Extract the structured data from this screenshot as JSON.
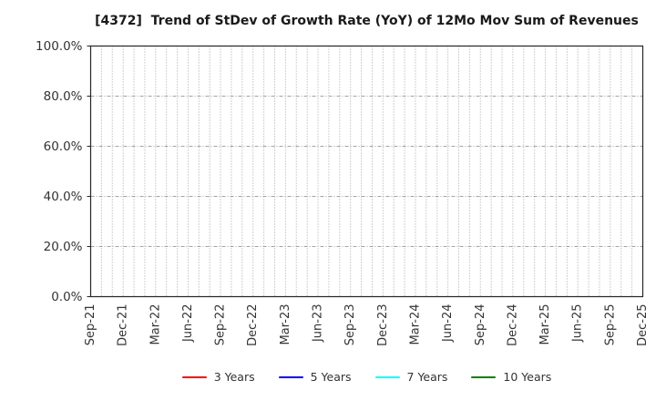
{
  "chart_data": {
    "type": "line",
    "title": "[4372]  Trend of StDev of Growth Rate (YoY) of 12Mo Mov Sum of Revenues",
    "x_tick_labels": [
      "Sep-21",
      "Dec-21",
      "Mar-22",
      "Jun-22",
      "Sep-22",
      "Dec-22",
      "Mar-23",
      "Jun-23",
      "Sep-23",
      "Dec-23",
      "Mar-24",
      "Jun-24",
      "Sep-24",
      "Dec-24",
      "Mar-25",
      "Jun-25",
      "Sep-25",
      "Dec-25"
    ],
    "months_per_x_tick": 3,
    "y_ticks": {
      "values": [
        0,
        20,
        40,
        60,
        80,
        100
      ],
      "labels": [
        "0.0%",
        "20.0%",
        "40.0%",
        "60.0%",
        "80.0%",
        "100.0%"
      ]
    },
    "ylim": [
      0,
      100
    ],
    "grid": {
      "vertical": "dotted line every month",
      "horizontal": "dash-dot line at each y tick",
      "color": "#a3a3a3"
    },
    "axis_color": "#262626",
    "tick_label_color": "#333333",
    "legend": {
      "position": "bottom-center"
    },
    "series": [
      {
        "name": "3 Years",
        "color": "#ff0000",
        "values": []
      },
      {
        "name": "5 Years",
        "color": "#0000ff",
        "values": []
      },
      {
        "name": "7 Years",
        "color": "#00ffff",
        "values": []
      },
      {
        "name": "10 Years",
        "color": "#008000",
        "values": []
      }
    ]
  }
}
